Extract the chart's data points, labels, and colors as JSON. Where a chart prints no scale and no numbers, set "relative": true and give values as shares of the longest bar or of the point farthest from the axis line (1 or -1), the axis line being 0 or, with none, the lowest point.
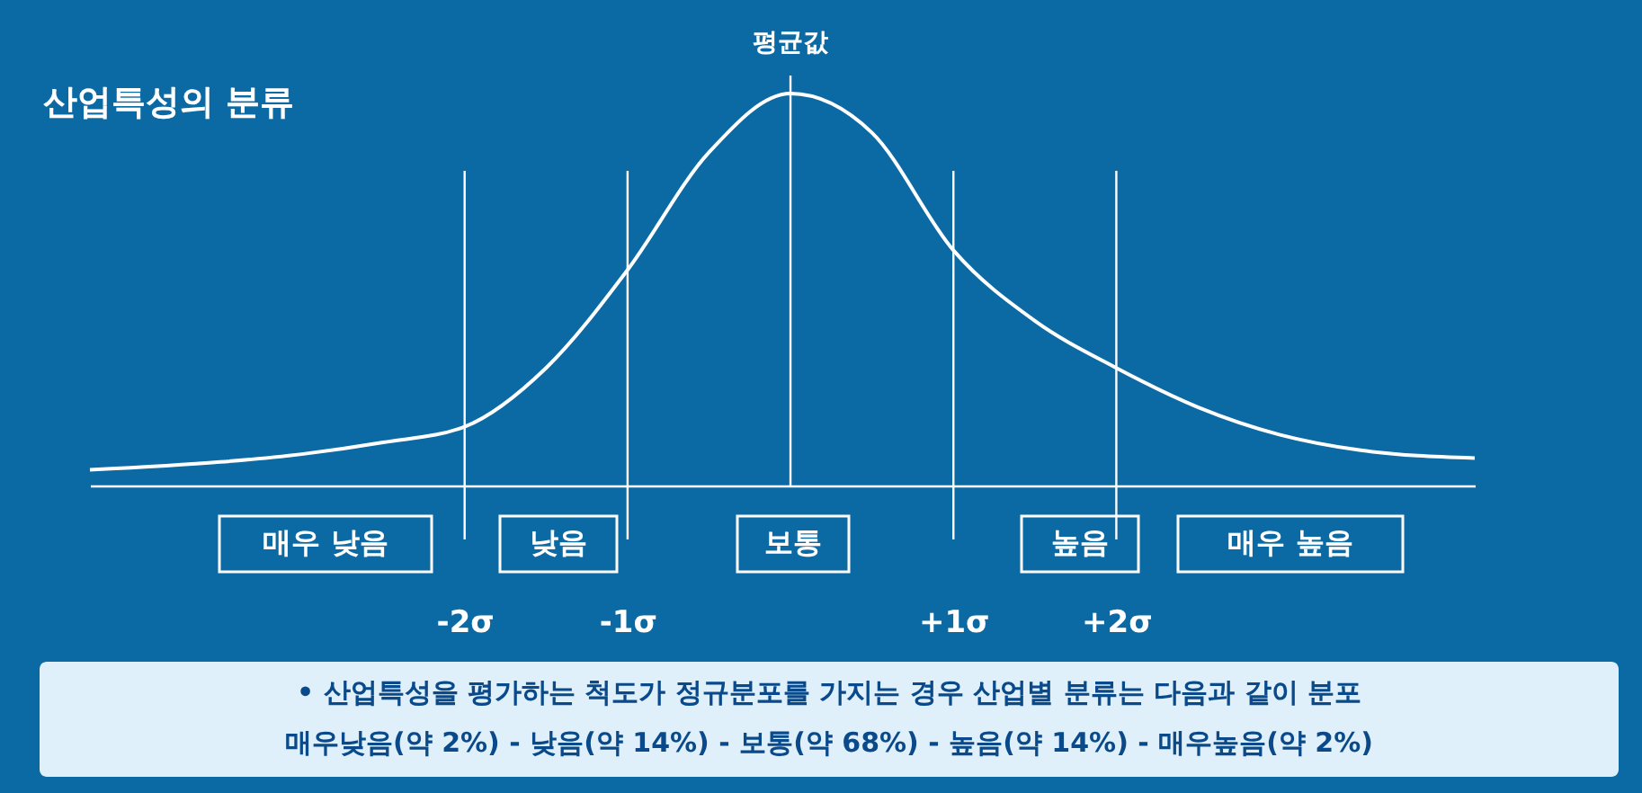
{
  "chart_data": {
    "type": "line",
    "title": "산업특성의 분류",
    "relative": true,
    "x": [
      -4.3,
      -3.5,
      -3,
      -2.5,
      -2,
      -1.5,
      -1,
      -0.5,
      0,
      0.5,
      1,
      1.5,
      2,
      2.5,
      3,
      3.5,
      4.2
    ],
    "xlim": [
      -4.3,
      4.2
    ],
    "xticks": [
      {
        "value": -2,
        "label": "-2σ"
      },
      {
        "value": -1,
        "label": "-1σ"
      },
      {
        "value": 1,
        "label": "+1σ"
      },
      {
        "value": 2,
        "label": "+2σ"
      }
    ],
    "series": [
      {
        "color": "#ffffff",
        "values": [
          0.04,
          0.06,
          0.08,
          0.11,
          0.15,
          0.3,
          0.55,
          0.85,
          1,
          0.9,
          0.6,
          0.42,
          0.3,
          0.2,
          0.13,
          0.09,
          0.07
        ]
      }
    ],
    "ref_lines": [
      {
        "axis": "x",
        "value": 0,
        "label": "평균값",
        "color": "#ffffff"
      }
    ],
    "annotations": [
      "매우 낮음",
      "낮음",
      "보통",
      "높음",
      "매우 높음",
      "• 산업특성을 평가하는 척도가 정규분포를 가지는 경우 산업별 분류는 다음과 같이 분포",
      "매우낮음(약 2%)  -  낮음(약 14%)  -  보통(약 68%)  -  높음(약 14%)  -  매우높음(약 2%)"
    ],
    "grid": "x",
    "marker": "none",
    "line_style": "solid"
  }
}
